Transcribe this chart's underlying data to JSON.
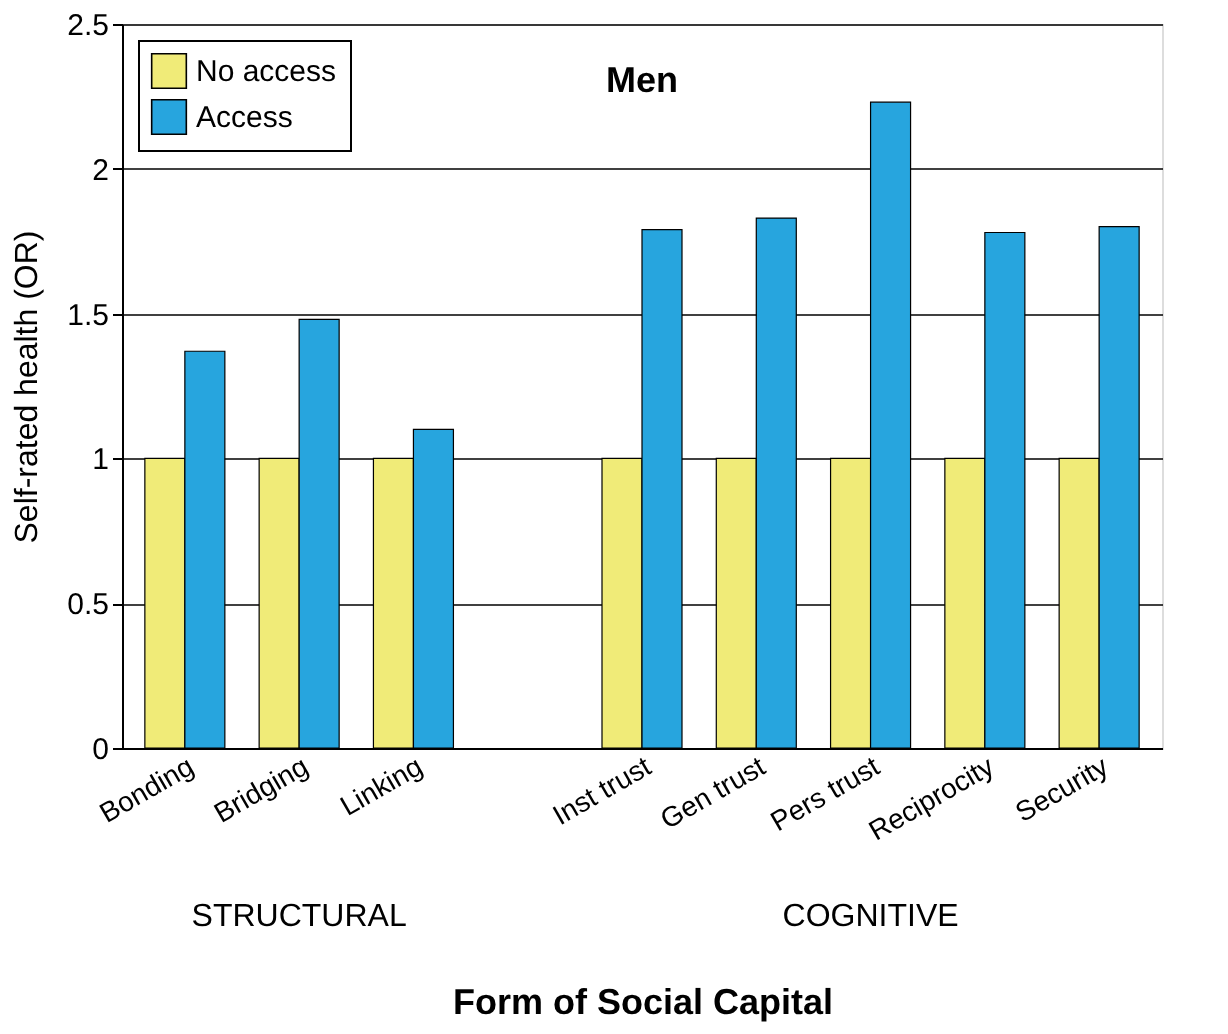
{
  "chart_data": {
    "type": "bar",
    "title": "Men",
    "xlabel": "Form of Social Capital",
    "ylabel": "Self-rated health (OR)",
    "categories": [
      "Bonding",
      "Bridging",
      "Linking",
      null,
      "Inst trust",
      "Gen trust",
      "Pers trust",
      "Reciprocity",
      "Security"
    ],
    "series": [
      {
        "name": "No access",
        "color": "#f0eb78",
        "values": [
          1,
          1,
          1,
          null,
          1,
          1,
          1,
          1,
          1
        ]
      },
      {
        "name": "Access",
        "color": "#27a5de",
        "values": [
          1.37,
          1.48,
          1.1,
          null,
          1.79,
          1.83,
          2.23,
          1.78,
          1.8
        ]
      }
    ],
    "ylim": [
      0,
      2.5
    ],
    "yticks": [
      0,
      0.5,
      1,
      1.5,
      2,
      2.5
    ],
    "grid": "y",
    "legend": "top left",
    "annotations": [
      "STRUCTURAL",
      "COGNITIVE"
    ]
  }
}
